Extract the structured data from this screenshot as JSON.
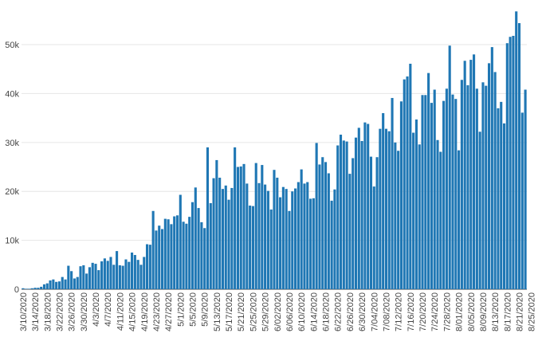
{
  "chart_data": {
    "type": "bar",
    "x_start": "3/10/2020",
    "bar_color": "#1f77b4",
    "grid": true,
    "ylim": [
      0,
      57500
    ],
    "y_ticks": [
      {
        "value": 0,
        "label": "0"
      },
      {
        "value": 10000,
        "label": "10k"
      },
      {
        "value": 20000,
        "label": "20k"
      },
      {
        "value": 30000,
        "label": "30k"
      },
      {
        "value": 40000,
        "label": "40k"
      },
      {
        "value": 50000,
        "label": "50k"
      }
    ],
    "x_ticks": [
      "3/10/2020",
      "3/14/2020",
      "3/18/2020",
      "3/22/2020",
      "3/26/2020",
      "3/30/2020",
      "4/3/2020",
      "4/7/2020",
      "4/11/2020",
      "4/15/2020",
      "4/19/2020",
      "4/23/2020",
      "4/27/2020",
      "5/1/2020",
      "5/5/2020",
      "5/9/2020",
      "5/13/2020",
      "5/17/2020",
      "5/21/2020",
      "5/25/2020",
      "5/29/2020",
      "6/02/2020",
      "6/06/2020",
      "6/10/2020",
      "6/14/2020",
      "6/18/2020",
      "6/22/2020",
      "6/26/2020",
      "6/30/2020",
      "7/04/2020",
      "7/08/2020",
      "7/12/2020",
      "7/16/2020",
      "7/20/2020",
      "7/24/2020",
      "7/28/2020",
      "8/01/2020",
      "8/05/2020",
      "8/09/2020",
      "8/13/2020",
      "8/17/2020",
      "8/21/2020",
      "8/25/2020"
    ],
    "values": [
      200,
      100,
      100,
      200,
      300,
      300,
      500,
      1000,
      1200,
      1800,
      2000,
      1500,
      1600,
      2500,
      2000,
      4800,
      3700,
      2200,
      2500,
      4700,
      4900,
      3200,
      4500,
      5400,
      5200,
      3900,
      5700,
      6300,
      5800,
      6600,
      5000,
      7800,
      4900,
      4800,
      6100,
      5600,
      7500,
      7000,
      6000,
      5000,
      6600,
      9200,
      9100,
      16000,
      12000,
      13000,
      12300,
      14400,
      14300,
      13300,
      14900,
      15100,
      19300,
      13800,
      13400,
      14800,
      17800,
      20800,
      16600,
      13700,
      12500,
      29000,
      17600,
      22700,
      26400,
      22800,
      20500,
      21200,
      18300,
      20700,
      29000,
      25000,
      25100,
      25600,
      21600,
      17100,
      17000,
      25800,
      21700,
      25400,
      21400,
      20100,
      16300,
      24400,
      22800,
      18800,
      20900,
      20500,
      16000,
      20000,
      20600,
      21900,
      24500,
      21600,
      21900,
      18500,
      18600,
      29900,
      25500,
      27000,
      26000,
      23700,
      18100,
      20400,
      29400,
      31600,
      30400,
      30200,
      23600,
      26800,
      31000,
      33000,
      30300,
      34100,
      33800,
      27100,
      21000,
      27000,
      32800,
      36000,
      32800,
      32300,
      39100,
      30000,
      28300,
      38400,
      42900,
      43500,
      46100,
      32000,
      34700,
      29600,
      39700,
      39700,
      44200,
      38100,
      40800,
      30500,
      28100,
      38500,
      41000,
      49800,
      39800,
      38900,
      28400,
      42800,
      46700,
      41700,
      46900,
      48000,
      41000,
      32200,
      42300,
      41600,
      46200,
      49500,
      44400,
      37000,
      38300,
      33900,
      50300,
      51600,
      51800,
      56800,
      54400,
      36100,
      40800
    ]
  }
}
